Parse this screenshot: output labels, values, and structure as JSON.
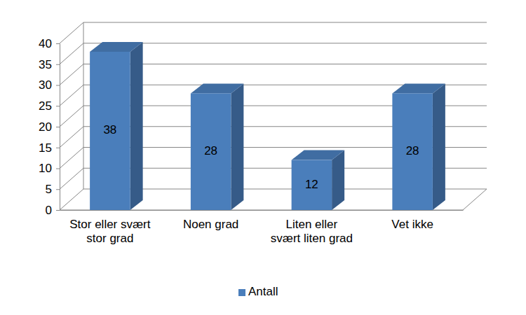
{
  "chart_data": {
    "type": "bar",
    "categories": [
      "Stor eller svært stor grad",
      "Noen grad",
      "Liten eller svært liten grad",
      "Vet ikke"
    ],
    "series": [
      {
        "name": "Antall",
        "color": "#4a7ebb",
        "values": [
          38,
          28,
          12,
          28
        ]
      }
    ],
    "ylim": [
      0,
      40
    ],
    "yticks": [
      0,
      5,
      10,
      15,
      20,
      25,
      30,
      35,
      40
    ],
    "grid": true,
    "legend": "bottom",
    "data_labels": true
  }
}
